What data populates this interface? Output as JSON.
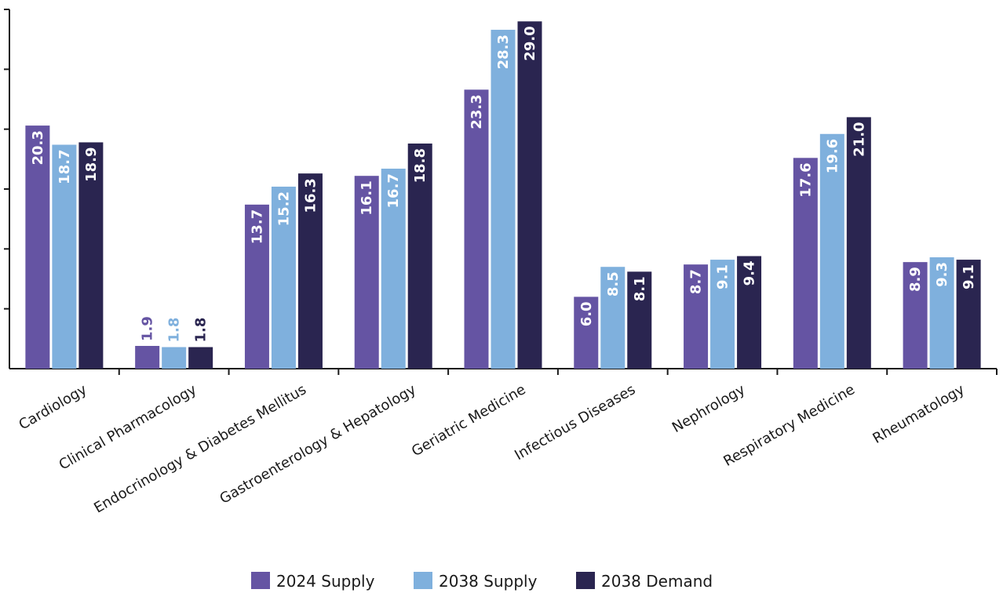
{
  "chart_data": {
    "type": "bar",
    "categories": [
      "Cardiology",
      "Clinical Pharmacology",
      "Endocrinology & Diabetes Mellitus",
      "Gastroenterology & Hepatology",
      "Geriatric Medicine",
      "Infectious Diseases",
      "Nephrology",
      "Respiratory Medicine",
      "Rheumatology"
    ],
    "series": [
      {
        "name": "2024 Supply",
        "color": "#6554a3",
        "values": [
          20.3,
          1.9,
          13.7,
          16.1,
          23.3,
          6.0,
          8.7,
          17.6,
          8.9
        ]
      },
      {
        "name": "2038 Supply",
        "color": "#7fb0dd",
        "values": [
          18.7,
          1.8,
          15.2,
          16.7,
          28.3,
          8.5,
          9.1,
          19.6,
          9.3
        ]
      },
      {
        "name": "2038 Demand",
        "color": "#2a2550",
        "values": [
          18.9,
          1.8,
          16.3,
          18.8,
          29.0,
          8.1,
          9.4,
          21.0,
          9.1
        ]
      }
    ],
    "value_labels": [
      [
        "20.3",
        "1.9",
        "13.7",
        "16.1",
        "23.3",
        "6.0",
        "8.7",
        "17.6",
        "8.9"
      ],
      [
        "18.7",
        "1.8",
        "15.2",
        "16.7",
        "28.3",
        "8.5",
        "9.1",
        "19.6",
        "9.3"
      ],
      [
        "18.9",
        "1.8",
        "16.3",
        "18.8",
        "29.0",
        "8.1",
        "9.4",
        "21.0",
        "9.1"
      ]
    ],
    "ylim": [
      0,
      30
    ],
    "y_tick_step": 5,
    "grid": false,
    "legend_position": "bottom-center",
    "title": "",
    "xlabel": "",
    "ylabel": ""
  }
}
